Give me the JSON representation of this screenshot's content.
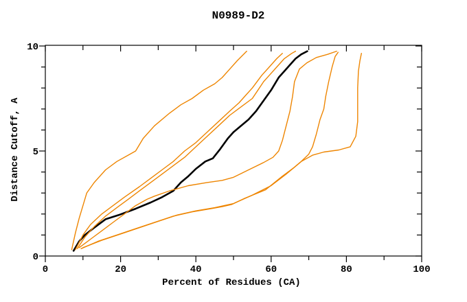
{
  "chart_data": {
    "type": "line",
    "title": "N0989-D2",
    "xlabel": "Percent of Residues (CA)",
    "ylabel": "Distance Cutoff, A",
    "xlim": [
      0,
      100
    ],
    "ylim": [
      0,
      10
    ],
    "xticks_major": [
      0,
      20,
      40,
      60,
      80,
      100
    ],
    "xtick_minor_step": 10,
    "yticks_major": [
      0,
      5,
      10
    ],
    "ytick_minor_step": 1,
    "grid": false,
    "legend_position": "none",
    "frame": "box",
    "colors": {
      "model_curve": "#000000",
      "comparison_curves": "#ee8500"
    },
    "series": [
      {
        "name": "black-main-curve",
        "color": "#000000",
        "width": 2.6,
        "points": [
          [
            7.5,
            0.25
          ],
          [
            9,
            0.7
          ],
          [
            10.5,
            1.0
          ],
          [
            13,
            1.35
          ],
          [
            16,
            1.75
          ],
          [
            19.5,
            1.95
          ],
          [
            24,
            2.25
          ],
          [
            28,
            2.55
          ],
          [
            31,
            2.8
          ],
          [
            34,
            3.1
          ],
          [
            36,
            3.5
          ],
          [
            38,
            3.8
          ],
          [
            40,
            4.15
          ],
          [
            42.5,
            4.5
          ],
          [
            44.5,
            4.65
          ],
          [
            46.5,
            5.1
          ],
          [
            48.5,
            5.6
          ],
          [
            50,
            5.9
          ],
          [
            52,
            6.2
          ],
          [
            54,
            6.5
          ],
          [
            56,
            6.9
          ],
          [
            58,
            7.4
          ],
          [
            60,
            7.9
          ],
          [
            62,
            8.5
          ],
          [
            63.5,
            8.8
          ],
          [
            65,
            9.1
          ],
          [
            66.5,
            9.4
          ],
          [
            68,
            9.6
          ],
          [
            69.6,
            9.75
          ]
        ]
      },
      {
        "name": "orange-curve-1",
        "color": "#ee8500",
        "width": 1.4,
        "points": [
          [
            7,
            0.3
          ],
          [
            8,
            1.1
          ],
          [
            9,
            1.8
          ],
          [
            10,
            2.4
          ],
          [
            11,
            3.0
          ],
          [
            13,
            3.5
          ],
          [
            16,
            4.1
          ],
          [
            19,
            4.5
          ],
          [
            22,
            4.8
          ],
          [
            24,
            5.0
          ],
          [
            26,
            5.6
          ],
          [
            29,
            6.2
          ],
          [
            33,
            6.8
          ],
          [
            36,
            7.2
          ],
          [
            39,
            7.5
          ],
          [
            42,
            7.9
          ],
          [
            45,
            8.2
          ],
          [
            47,
            8.5
          ],
          [
            49,
            8.9
          ],
          [
            51,
            9.3
          ],
          [
            53.5,
            9.75
          ]
        ]
      },
      {
        "name": "orange-curve-2",
        "color": "#ee8500",
        "width": 1.4,
        "points": [
          [
            8,
            0.3
          ],
          [
            10,
            1.0
          ],
          [
            12,
            1.5
          ],
          [
            15,
            2.0
          ],
          [
            18,
            2.4
          ],
          [
            21,
            2.8
          ],
          [
            25,
            3.3
          ],
          [
            28,
            3.7
          ],
          [
            31,
            4.1
          ],
          [
            34,
            4.5
          ],
          [
            37,
            5.0
          ],
          [
            40,
            5.4
          ],
          [
            43,
            5.9
          ],
          [
            46,
            6.4
          ],
          [
            49,
            6.9
          ],
          [
            51.5,
            7.3
          ],
          [
            53,
            7.6
          ],
          [
            55,
            8.0
          ],
          [
            57.5,
            8.6
          ],
          [
            59.5,
            9.0
          ],
          [
            61.5,
            9.4
          ],
          [
            63,
            9.65
          ]
        ]
      },
      {
        "name": "orange-curve-3",
        "color": "#ee8500",
        "width": 1.4,
        "points": [
          [
            8.5,
            0.35
          ],
          [
            10.5,
            0.9
          ],
          [
            13,
            1.4
          ],
          [
            16,
            1.9
          ],
          [
            19,
            2.3
          ],
          [
            22,
            2.7
          ],
          [
            25,
            3.1
          ],
          [
            28,
            3.5
          ],
          [
            31,
            3.9
          ],
          [
            34,
            4.3
          ],
          [
            37,
            4.7
          ],
          [
            40,
            5.2
          ],
          [
            43,
            5.7
          ],
          [
            46,
            6.2
          ],
          [
            49,
            6.7
          ],
          [
            52,
            7.1
          ],
          [
            55,
            7.5
          ],
          [
            56.5,
            7.9
          ],
          [
            58,
            8.3
          ],
          [
            59.5,
            8.6
          ],
          [
            61.5,
            9.0
          ],
          [
            63.5,
            9.4
          ],
          [
            65.5,
            9.65
          ],
          [
            66.5,
            9.75
          ]
        ]
      },
      {
        "name": "orange-curve-4",
        "color": "#ee8500",
        "width": 1.4,
        "points": [
          [
            9,
            0.4
          ],
          [
            12,
            0.8
          ],
          [
            15,
            1.2
          ],
          [
            18,
            1.6
          ],
          [
            21,
            2.0
          ],
          [
            24,
            2.4
          ],
          [
            27,
            2.7
          ],
          [
            29,
            2.85
          ],
          [
            33,
            3.1
          ],
          [
            38,
            3.35
          ],
          [
            43,
            3.5
          ],
          [
            47,
            3.6
          ],
          [
            50,
            3.75
          ],
          [
            54,
            4.1
          ],
          [
            58,
            4.45
          ],
          [
            60.5,
            4.7
          ],
          [
            62,
            5.0
          ],
          [
            63,
            5.5
          ],
          [
            64,
            6.2
          ],
          [
            65,
            6.9
          ],
          [
            65.7,
            7.6
          ],
          [
            66.2,
            8.3
          ],
          [
            67.5,
            8.9
          ],
          [
            69.5,
            9.2
          ],
          [
            72,
            9.45
          ],
          [
            75,
            9.6
          ],
          [
            77.4,
            9.75
          ]
        ]
      },
      {
        "name": "orange-curve-5",
        "color": "#ee8500",
        "width": 1.4,
        "points": [
          [
            9.5,
            0.35
          ],
          [
            14,
            0.7
          ],
          [
            19,
            1.0
          ],
          [
            24,
            1.3
          ],
          [
            29,
            1.6
          ],
          [
            34,
            1.9
          ],
          [
            39,
            2.1
          ],
          [
            44,
            2.25
          ],
          [
            47,
            2.35
          ],
          [
            49.5,
            2.45
          ],
          [
            53,
            2.75
          ],
          [
            58.5,
            3.15
          ],
          [
            63,
            3.8
          ],
          [
            66,
            4.2
          ],
          [
            68,
            4.5
          ],
          [
            70,
            4.85
          ],
          [
            71,
            5.2
          ],
          [
            72,
            5.8
          ],
          [
            73,
            6.5
          ],
          [
            74,
            7.0
          ],
          [
            74.5,
            7.6
          ],
          [
            75.3,
            8.3
          ],
          [
            76.2,
            9.0
          ],
          [
            77,
            9.5
          ],
          [
            77.8,
            9.7
          ]
        ]
      },
      {
        "name": "orange-curve-6",
        "color": "#ee8500",
        "width": 1.4,
        "points": [
          [
            10,
            0.4
          ],
          [
            15,
            0.75
          ],
          [
            20,
            1.05
          ],
          [
            25,
            1.35
          ],
          [
            30,
            1.65
          ],
          [
            35,
            1.95
          ],
          [
            40,
            2.15
          ],
          [
            45,
            2.3
          ],
          [
            50,
            2.5
          ],
          [
            55,
            2.9
          ],
          [
            60,
            3.35
          ],
          [
            64,
            3.9
          ],
          [
            68,
            4.5
          ],
          [
            71,
            4.8
          ],
          [
            74,
            4.95
          ],
          [
            78,
            5.05
          ],
          [
            81,
            5.2
          ],
          [
            82.5,
            5.7
          ],
          [
            83,
            6.4
          ],
          [
            83,
            7.2
          ],
          [
            83,
            8.0
          ],
          [
            83.2,
            8.8
          ],
          [
            83.6,
            9.3
          ],
          [
            84,
            9.65
          ]
        ]
      }
    ]
  }
}
